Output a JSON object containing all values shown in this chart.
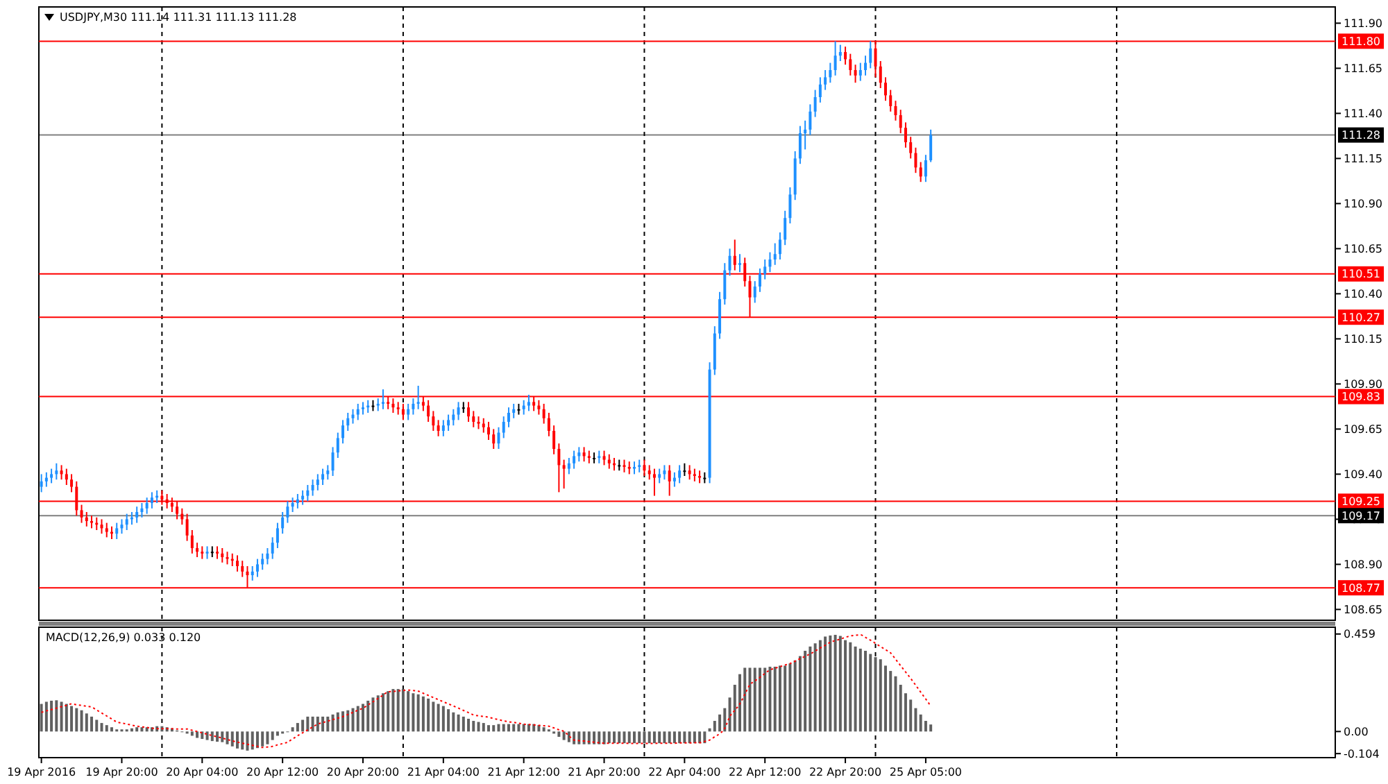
{
  "chart_data": [
    {
      "type": "candlestick",
      "title": "USDJPY,M30  111.14 111.31 111.13 111.28",
      "categories": [
        null,
        null,
        null,
        null,
        null,
        null,
        null,
        null,
        null,
        null,
        null,
        null,
        null,
        null,
        null,
        null,
        null,
        null,
        null,
        null,
        null,
        null,
        null,
        null,
        null,
        null,
        null,
        null,
        null,
        null,
        null,
        null,
        null,
        null,
        null,
        null,
        null,
        null,
        null,
        null,
        null,
        null,
        null,
        null,
        null,
        null,
        null,
        null,
        null,
        null,
        null,
        null,
        null,
        null,
        null,
        null,
        null,
        null,
        null,
        null,
        null,
        null,
        null,
        null,
        null,
        null,
        null,
        null,
        null,
        null,
        null,
        null,
        null,
        null,
        null,
        null,
        null,
        null,
        null,
        null,
        null,
        null,
        null,
        null,
        null,
        null,
        null,
        null,
        null,
        null,
        null,
        null,
        null,
        null,
        null,
        null,
        null,
        null,
        null,
        null,
        null,
        null,
        null,
        null,
        null,
        null,
        null,
        null,
        null,
        null,
        null,
        null,
        null,
        null,
        null,
        null,
        null,
        null,
        null,
        null,
        null,
        null,
        null,
        null,
        null,
        null,
        null,
        null,
        null,
        null,
        null,
        null,
        null,
        null,
        null,
        null,
        null,
        null,
        null,
        null,
        null,
        null,
        null,
        null,
        null,
        null,
        null,
        null,
        null,
        null,
        null,
        null,
        null,
        null,
        null,
        null,
        null,
        null,
        null,
        null,
        null,
        null,
        null,
        null,
        null,
        null,
        null,
        null,
        null,
        null,
        null,
        null,
        null,
        null,
        null,
        null,
        null,
        null,
        null,
        null,
        null,
        null,
        null,
        null,
        null,
        null,
        null,
        null,
        null,
        null,
        null,
        null,
        null,
        null,
        null,
        null,
        null,
        null,
        null,
        null,
        null,
        null,
        null,
        null,
        null,
        null,
        null,
        null,
        null,
        null,
        null,
        null,
        null,
        null,
        null,
        null,
        null,
        null,
        null,
        null,
        null,
        null,
        null,
        null,
        null,
        null,
        null,
        null,
        null,
        null,
        null,
        null,
        null,
        null,
        null,
        null,
        null,
        null,
        null,
        null,
        null,
        null,
        null,
        null,
        null,
        null,
        null,
        null,
        null,
        null,
        null,
        null,
        null,
        null,
        null,
        null,
        null,
        null
      ],
      "ohlc": [
        [
          109.33,
          109.4,
          109.3,
          109.36
        ],
        [
          109.36,
          109.41,
          109.33,
          109.38
        ],
        [
          109.38,
          109.43,
          109.35,
          109.4
        ],
        [
          109.4,
          109.46,
          109.37,
          109.42
        ],
        [
          109.42,
          109.45,
          109.37,
          109.4
        ],
        [
          109.4,
          109.43,
          109.34,
          109.37
        ],
        [
          109.37,
          109.4,
          109.3,
          109.33
        ],
        [
          109.33,
          109.36,
          109.17,
          109.2
        ],
        [
          109.2,
          109.23,
          109.13,
          109.16
        ],
        [
          109.16,
          109.19,
          109.11,
          109.14
        ],
        [
          109.14,
          109.17,
          109.1,
          109.13
        ],
        [
          109.13,
          109.16,
          109.09,
          109.12
        ],
        [
          109.12,
          109.15,
          109.07,
          109.1
        ],
        [
          109.1,
          109.13,
          109.05,
          109.08
        ],
        [
          109.08,
          109.11,
          109.04,
          109.07
        ],
        [
          109.07,
          109.13,
          109.04,
          109.1
        ],
        [
          109.1,
          109.15,
          109.07,
          109.12
        ],
        [
          109.12,
          109.18,
          109.09,
          109.15
        ],
        [
          109.15,
          109.19,
          109.12,
          109.16
        ],
        [
          109.16,
          109.22,
          109.13,
          109.19
        ],
        [
          109.19,
          109.24,
          109.16,
          109.21
        ],
        [
          109.21,
          109.27,
          109.18,
          109.24
        ],
        [
          109.24,
          109.3,
          109.21,
          109.27
        ],
        [
          109.27,
          109.31,
          109.24,
          109.28
        ],
        [
          109.28,
          109.31,
          109.23,
          109.26
        ],
        [
          109.26,
          109.29,
          109.21,
          109.24
        ],
        [
          109.24,
          109.27,
          109.19,
          109.22
        ],
        [
          109.22,
          109.25,
          109.15,
          109.18
        ],
        [
          109.18,
          109.21,
          109.12,
          109.15
        ],
        [
          109.15,
          109.18,
          109.03,
          109.06
        ],
        [
          109.06,
          109.09,
          108.96,
          108.99
        ],
        [
          108.99,
          109.02,
          108.94,
          108.97
        ],
        [
          108.97,
          109.0,
          108.93,
          108.96
        ],
        [
          108.96,
          109.0,
          108.93,
          108.97
        ],
        [
          108.97,
          109.0,
          108.94,
          108.97
        ],
        [
          108.97,
          109.0,
          108.93,
          108.96
        ],
        [
          108.96,
          108.99,
          108.91,
          108.94
        ],
        [
          108.94,
          108.97,
          108.9,
          108.93
        ],
        [
          108.93,
          108.96,
          108.89,
          108.92
        ],
        [
          108.92,
          108.95,
          108.86,
          108.89
        ],
        [
          108.89,
          108.92,
          108.83,
          108.86
        ],
        [
          108.86,
          108.89,
          108.77,
          108.84
        ],
        [
          108.84,
          108.89,
          108.81,
          108.86
        ],
        [
          108.86,
          108.93,
          108.83,
          108.9
        ],
        [
          108.9,
          108.96,
          108.87,
          108.93
        ],
        [
          108.93,
          108.99,
          108.9,
          108.96
        ],
        [
          108.96,
          109.05,
          108.93,
          109.02
        ],
        [
          109.02,
          109.13,
          108.99,
          109.1
        ],
        [
          109.1,
          109.19,
          109.07,
          109.16
        ],
        [
          109.16,
          109.25,
          109.13,
          109.22
        ],
        [
          109.22,
          109.27,
          109.19,
          109.24
        ],
        [
          109.24,
          109.29,
          109.21,
          109.26
        ],
        [
          109.26,
          109.31,
          109.23,
          109.28
        ],
        [
          109.28,
          109.34,
          109.25,
          109.31
        ],
        [
          109.31,
          109.37,
          109.28,
          109.34
        ],
        [
          109.34,
          109.4,
          109.31,
          109.37
        ],
        [
          109.37,
          109.43,
          109.34,
          109.4
        ],
        [
          109.4,
          109.45,
          109.37,
          109.42
        ],
        [
          109.42,
          109.55,
          109.39,
          109.52
        ],
        [
          109.52,
          109.63,
          109.49,
          109.6
        ],
        [
          109.6,
          109.7,
          109.57,
          109.67
        ],
        [
          109.67,
          109.74,
          109.64,
          109.71
        ],
        [
          109.71,
          109.76,
          109.68,
          109.73
        ],
        [
          109.73,
          109.79,
          109.7,
          109.76
        ],
        [
          109.76,
          109.8,
          109.73,
          109.77
        ],
        [
          109.77,
          109.81,
          109.74,
          109.78
        ],
        [
          109.78,
          109.81,
          109.75,
          109.78
        ],
        [
          109.78,
          109.82,
          109.75,
          109.79
        ],
        [
          109.79,
          109.87,
          109.76,
          109.8
        ],
        [
          109.8,
          109.83,
          109.76,
          109.79
        ],
        [
          109.79,
          109.82,
          109.74,
          109.77
        ],
        [
          109.77,
          109.8,
          109.73,
          109.76
        ],
        [
          109.76,
          109.79,
          109.7,
          109.73
        ],
        [
          109.73,
          109.79,
          109.7,
          109.76
        ],
        [
          109.76,
          109.82,
          109.73,
          109.79
        ],
        [
          109.79,
          109.89,
          109.76,
          109.8
        ],
        [
          109.8,
          109.83,
          109.75,
          109.78
        ],
        [
          109.78,
          109.81,
          109.69,
          109.72
        ],
        [
          109.72,
          109.75,
          109.64,
          109.67
        ],
        [
          109.67,
          109.7,
          109.61,
          109.64
        ],
        [
          109.64,
          109.7,
          109.61,
          109.67
        ],
        [
          109.67,
          109.73,
          109.64,
          109.7
        ],
        [
          109.7,
          109.76,
          109.67,
          109.73
        ],
        [
          109.73,
          109.8,
          109.7,
          109.77
        ],
        [
          109.77,
          109.8,
          109.74,
          109.77
        ],
        [
          109.77,
          109.8,
          109.69,
          109.72
        ],
        [
          109.72,
          109.75,
          109.66,
          109.69
        ],
        [
          109.69,
          109.72,
          109.65,
          109.68
        ],
        [
          109.68,
          109.71,
          109.63,
          109.66
        ],
        [
          109.66,
          109.69,
          109.59,
          109.62
        ],
        [
          109.62,
          109.65,
          109.54,
          109.57
        ],
        [
          109.57,
          109.66,
          109.54,
          109.63
        ],
        [
          109.63,
          109.72,
          109.6,
          109.69
        ],
        [
          109.69,
          109.77,
          109.66,
          109.74
        ],
        [
          109.74,
          109.79,
          109.71,
          109.76
        ],
        [
          109.76,
          109.79,
          109.73,
          109.76
        ],
        [
          109.76,
          109.81,
          109.73,
          109.78
        ],
        [
          109.78,
          109.84,
          109.75,
          109.8
        ],
        [
          109.8,
          109.83,
          109.75,
          109.78
        ],
        [
          109.78,
          109.81,
          109.73,
          109.76
        ],
        [
          109.76,
          109.79,
          109.68,
          109.71
        ],
        [
          109.71,
          109.74,
          109.61,
          109.64
        ],
        [
          109.64,
          109.67,
          109.51,
          109.54
        ],
        [
          109.54,
          109.57,
          109.3,
          109.45
        ],
        [
          109.45,
          109.48,
          109.32,
          109.43
        ],
        [
          109.43,
          109.49,
          109.4,
          109.46
        ],
        [
          109.46,
          109.53,
          109.43,
          109.5
        ],
        [
          109.5,
          109.55,
          109.47,
          109.52
        ],
        [
          109.52,
          109.55,
          109.47,
          109.5
        ],
        [
          109.5,
          109.53,
          109.46,
          109.49
        ],
        [
          109.49,
          109.52,
          109.46,
          109.49
        ],
        [
          109.49,
          109.53,
          109.46,
          109.5
        ],
        [
          109.5,
          109.53,
          109.45,
          109.48
        ],
        [
          109.48,
          109.51,
          109.43,
          109.46
        ],
        [
          109.46,
          109.49,
          109.42,
          109.45
        ],
        [
          109.45,
          109.48,
          109.42,
          109.45
        ],
        [
          109.45,
          109.48,
          109.41,
          109.44
        ],
        [
          109.44,
          109.47,
          109.4,
          109.43
        ],
        [
          109.43,
          109.47,
          109.4,
          109.44
        ],
        [
          109.44,
          109.48,
          109.41,
          109.45
        ],
        [
          109.45,
          109.48,
          109.39,
          109.42
        ],
        [
          109.42,
          109.45,
          109.37,
          109.4
        ],
        [
          109.4,
          109.43,
          109.28,
          109.38
        ],
        [
          109.38,
          109.43,
          109.35,
          109.4
        ],
        [
          109.4,
          109.45,
          109.37,
          109.42
        ],
        [
          109.42,
          109.45,
          109.28,
          109.36
        ],
        [
          109.36,
          109.41,
          109.33,
          109.38
        ],
        [
          109.38,
          109.45,
          109.35,
          109.42
        ],
        [
          109.42,
          109.46,
          109.39,
          109.42
        ],
        [
          109.42,
          109.45,
          109.37,
          109.4
        ],
        [
          109.4,
          109.43,
          109.36,
          109.39
        ],
        [
          109.39,
          109.42,
          109.35,
          109.38
        ],
        [
          109.38,
          109.41,
          109.35,
          109.38
        ],
        [
          109.38,
          110.02,
          109.35,
          109.98
        ],
        [
          109.98,
          110.22,
          109.95,
          110.18
        ],
        [
          110.18,
          110.41,
          110.15,
          110.37
        ],
        [
          110.37,
          110.57,
          110.34,
          110.53
        ],
        [
          110.53,
          110.65,
          110.5,
          110.61
        ],
        [
          110.61,
          110.7,
          110.53,
          110.56
        ],
        [
          110.56,
          110.62,
          110.52,
          110.57
        ],
        [
          110.57,
          110.6,
          110.44,
          110.47
        ],
        [
          110.47,
          110.5,
          110.27,
          110.38
        ],
        [
          110.38,
          110.47,
          110.35,
          110.44
        ],
        [
          110.44,
          110.54,
          110.41,
          110.51
        ],
        [
          110.51,
          110.59,
          110.48,
          110.55
        ],
        [
          110.55,
          110.63,
          110.52,
          110.59
        ],
        [
          110.59,
          110.68,
          110.56,
          110.62
        ],
        [
          110.62,
          110.74,
          110.59,
          110.7
        ],
        [
          110.7,
          110.86,
          110.67,
          110.82
        ],
        [
          110.82,
          110.99,
          110.79,
          110.95
        ],
        [
          110.95,
          111.19,
          110.92,
          111.15
        ],
        [
          111.15,
          111.33,
          111.12,
          111.29
        ],
        [
          111.29,
          111.36,
          111.2,
          111.31
        ],
        [
          111.31,
          111.45,
          111.28,
          111.41
        ],
        [
          111.41,
          111.53,
          111.38,
          111.49
        ],
        [
          111.49,
          111.6,
          111.46,
          111.56
        ],
        [
          111.56,
          111.64,
          111.53,
          111.6
        ],
        [
          111.6,
          111.68,
          111.57,
          111.64
        ],
        [
          111.64,
          111.8,
          111.61,
          111.72
        ],
        [
          111.72,
          111.78,
          111.69,
          111.74
        ],
        [
          111.74,
          111.77,
          111.67,
          111.7
        ],
        [
          111.7,
          111.73,
          111.61,
          111.64
        ],
        [
          111.64,
          111.67,
          111.57,
          111.61
        ],
        [
          111.61,
          111.68,
          111.58,
          111.64
        ],
        [
          111.64,
          111.72,
          111.61,
          111.68
        ],
        [
          111.68,
          111.8,
          111.65,
          111.76
        ],
        [
          111.76,
          111.8,
          111.6,
          111.66
        ],
        [
          111.66,
          111.69,
          111.54,
          111.57
        ],
        [
          111.57,
          111.6,
          111.47,
          111.5
        ],
        [
          111.5,
          111.53,
          111.41,
          111.44
        ],
        [
          111.44,
          111.47,
          111.36,
          111.39
        ],
        [
          111.39,
          111.42,
          111.29,
          111.32
        ],
        [
          111.32,
          111.35,
          111.21,
          111.24
        ],
        [
          111.24,
          111.27,
          111.15,
          111.18
        ],
        [
          111.18,
          111.21,
          111.07,
          111.1
        ],
        [
          111.1,
          111.13,
          111.02,
          111.05
        ],
        [
          111.05,
          111.17,
          111.02,
          111.14
        ],
        [
          111.14,
          111.31,
          111.13,
          111.28
        ],
        null,
        null,
        null,
        null,
        null,
        null,
        null,
        null,
        null,
        null,
        null,
        null,
        null,
        null,
        null,
        null,
        null,
        null,
        null,
        null,
        null,
        null,
        null,
        null,
        null,
        null,
        null,
        null,
        null,
        null,
        null,
        null,
        null,
        null,
        null,
        null,
        null,
        null,
        null,
        null,
        null,
        null,
        null,
        null,
        null,
        null,
        null,
        null,
        null,
        null,
        null,
        null,
        null,
        null,
        null,
        null,
        null,
        null,
        null,
        null,
        null,
        null,
        null,
        null,
        null,
        null,
        null,
        null,
        null,
        null,
        null,
        null,
        null,
        null,
        null,
        null,
        null,
        null,
        null,
        null
      ],
      "ylim": [
        108.59,
        111.99
      ],
      "yticks": [
        108.65,
        {
          "value": 108.9,
          "label": "108.90"
        },
        109.15,
        {
          "value": 109.4,
          "label": "109.40"
        },
        109.65,
        {
          "value": 109.9,
          "label": "109.90"
        },
        110.15,
        {
          "value": 110.4,
          "label": "110.40"
        },
        110.65,
        {
          "value": 110.9,
          "label": "110.90"
        },
        111.15,
        {
          "value": 111.4,
          "label": "111.40"
        },
        111.65,
        {
          "value": 111.9,
          "label": "111.90"
        }
      ],
      "ref_lines": [
        {
          "axis": "y",
          "value": 111.8,
          "label": "111.80",
          "color": "#ff0000"
        },
        {
          "axis": "y",
          "value": 111.28,
          "label": "111.28",
          "color": "#000000"
        },
        {
          "axis": "y",
          "value": 110.51,
          "label": "110.51",
          "color": "#ff0000"
        },
        {
          "axis": "y",
          "value": 110.27,
          "label": "110.27",
          "color": "#ff0000"
        },
        {
          "axis": "y",
          "value": 109.83,
          "label": "109.83",
          "color": "#ff0000"
        },
        {
          "axis": "y",
          "value": 109.25,
          "label": "109.25",
          "color": "#ff0000"
        },
        {
          "axis": "y",
          "value": 109.17,
          "label": "109.17",
          "color": "#000000"
        },
        {
          "axis": "y",
          "value": 108.77,
          "label": "108.77",
          "color": "#ff0000"
        }
      ]
    },
    {
      "type": "bar",
      "title": "MACD(12,26,9) 0.033 0.120",
      "categories": [
        "19 Apr 2016",
        null,
        null,
        null,
        null,
        null,
        null,
        null,
        null,
        null,
        null,
        null,
        null,
        null,
        null,
        null,
        "19 Apr 20:00",
        null,
        null,
        null,
        null,
        null,
        null,
        null,
        null,
        null,
        null,
        null,
        null,
        null,
        null,
        null,
        "20 Apr 04:00",
        null,
        null,
        null,
        null,
        null,
        null,
        null,
        null,
        null,
        null,
        null,
        null,
        null,
        null,
        null,
        "20 Apr 12:00",
        null,
        null,
        null,
        null,
        null,
        null,
        null,
        null,
        null,
        null,
        null,
        null,
        null,
        null,
        null,
        "20 Apr 20:00",
        null,
        null,
        null,
        null,
        null,
        null,
        null,
        null,
        null,
        null,
        null,
        null,
        null,
        null,
        null,
        "21 Apr 04:00",
        null,
        null,
        null,
        null,
        null,
        null,
        null,
        null,
        null,
        null,
        null,
        null,
        null,
        null,
        null,
        "21 Apr 12:00",
        null,
        null,
        null,
        null,
        null,
        null,
        null,
        null,
        null,
        null,
        null,
        null,
        null,
        null,
        null,
        "21 Apr 20:00",
        null,
        null,
        null,
        null,
        null,
        null,
        null,
        null,
        null,
        null,
        null,
        null,
        null,
        null,
        null,
        "22 Apr 04:00",
        null,
        null,
        null,
        null,
        null,
        null,
        null,
        null,
        null,
        null,
        null,
        null,
        null,
        null,
        null,
        "22 Apr 12:00",
        null,
        null,
        null,
        null,
        null,
        null,
        null,
        null,
        null,
        null,
        null,
        null,
        null,
        null,
        null,
        "22 Apr 20:00",
        null,
        null,
        null,
        null,
        null,
        null,
        null,
        null,
        null,
        null,
        null,
        null,
        null,
        null,
        null,
        "25 Apr 05:00",
        null,
        null,
        null,
        null,
        null,
        null,
        null,
        null,
        null,
        null,
        null,
        null,
        null,
        null,
        null,
        null,
        null,
        null,
        null,
        null,
        null,
        null,
        null,
        null,
        null,
        null,
        null,
        null,
        null,
        null,
        null,
        null,
        null,
        null,
        null,
        null,
        null,
        null,
        null,
        null,
        null,
        null,
        null,
        null,
        null,
        null,
        null,
        null,
        null,
        null,
        null,
        null,
        null,
        null,
        null,
        null,
        null,
        null,
        null,
        null,
        null,
        null,
        null,
        null,
        null,
        null,
        null,
        null,
        null,
        null,
        null,
        null,
        null,
        null,
        null,
        null,
        null,
        null,
        null,
        null,
        null
      ],
      "series": [
        {
          "color": "#606060",
          "values": [
            0.13,
            0.14,
            0.145,
            0.147,
            0.14,
            0.13,
            0.12,
            0.11,
            0.1,
            0.085,
            0.07,
            0.055,
            0.04,
            0.03,
            0.02,
            0.01,
            0.01,
            0.01,
            0.015,
            0.02,
            0.02,
            0.02,
            0.02,
            0.025,
            0.025,
            0.02,
            0.015,
            0.005,
            0,
            -0.01,
            -0.02,
            -0.03,
            -0.035,
            -0.04,
            -0.045,
            -0.048,
            -0.05,
            -0.06,
            -0.07,
            -0.08,
            -0.085,
            -0.09,
            -0.085,
            -0.078,
            -0.07,
            -0.06,
            -0.04,
            -0.02,
            -0.01,
            0,
            0.02,
            0.04,
            0.055,
            0.07,
            0.07,
            0.07,
            0.07,
            0.07,
            0.08,
            0.09,
            0.095,
            0.1,
            0.11,
            0.12,
            0.13,
            0.145,
            0.16,
            0.17,
            0.18,
            0.19,
            0.2,
            0.2,
            0.2,
            0.19,
            0.18,
            0.175,
            0.165,
            0.155,
            0.14,
            0.13,
            0.12,
            0.105,
            0.09,
            0.08,
            0.07,
            0.06,
            0.05,
            0.045,
            0.04,
            0.03,
            0.03,
            0.035,
            0.035,
            0.035,
            0.035,
            0.035,
            0.035,
            0.035,
            0.035,
            0.03,
            0.02,
            0.01,
            -0.01,
            -0.025,
            -0.04,
            -0.05,
            -0.06,
            -0.06,
            -0.06,
            -0.06,
            -0.06,
            -0.06,
            -0.06,
            -0.055,
            -0.055,
            -0.055,
            -0.055,
            -0.055,
            -0.055,
            -0.055,
            -0.055,
            -0.055,
            -0.055,
            -0.055,
            -0.055,
            -0.055,
            -0.055,
            -0.055,
            -0.055,
            -0.055,
            -0.055,
            -0.055,
            -0.055,
            0.015,
            0.05,
            0.08,
            0.11,
            0.16,
            0.22,
            0.27,
            0.3,
            0.3,
            0.3,
            0.3,
            0.3,
            0.305,
            0.305,
            0.31,
            0.31,
            0.32,
            0.335,
            0.355,
            0.38,
            0.4,
            0.415,
            0.43,
            0.447,
            0.452,
            0.455,
            0.45,
            0.43,
            0.42,
            0.4,
            0.39,
            0.38,
            0.365,
            0.35,
            0.34,
            0.31,
            0.285,
            0.26,
            0.22,
            0.18,
            0.15,
            0.11,
            0.08,
            0.05,
            0.033,
            null,
            null,
            null,
            null,
            null,
            null,
            null,
            null,
            null,
            null,
            null,
            null,
            null,
            null,
            null,
            null,
            null,
            null,
            null,
            null,
            null,
            null,
            null,
            null,
            null,
            null,
            null,
            null,
            null,
            null,
            null,
            null,
            null,
            null,
            null,
            null,
            null,
            null,
            null,
            null,
            null,
            null,
            null,
            null,
            null,
            null,
            null,
            null,
            null,
            null,
            null,
            null,
            null,
            null,
            null,
            null,
            null,
            null,
            null,
            null,
            null,
            null,
            null,
            null,
            null,
            null,
            null,
            null,
            null,
            null,
            null,
            null,
            null,
            null,
            null,
            null,
            null,
            null,
            null,
            null
          ]
        },
        {
          "type": "line",
          "color": "#ff0000",
          "line_style": "dotted",
          "values": [
            0.09,
            0.097,
            0.103,
            0.11,
            0.117,
            0.123,
            0.13,
            0.126,
            0.123,
            0.119,
            0.115,
            0.101,
            0.087,
            0.073,
            0.059,
            0.045,
            0.04,
            0.035,
            0.03,
            0.025,
            0.022,
            0.019,
            0.016,
            0.013,
            0.013,
            0.013,
            0.013,
            0.012,
            0.012,
            0.012,
            0.006,
            0,
            -0.006,
            -0.013,
            -0.019,
            -0.025,
            -0.031,
            -0.038,
            -0.044,
            -0.05,
            -0.055,
            -0.06,
            -0.065,
            -0.07,
            -0.075,
            -0.073,
            -0.07,
            -0.063,
            -0.057,
            -0.05,
            -0.035,
            -0.02,
            -0.006,
            0.008,
            0.021,
            0.035,
            0.042,
            0.049,
            0.056,
            0.063,
            0.07,
            0.08,
            0.09,
            0.1,
            0.11,
            0.125,
            0.14,
            0.156,
            0.171,
            0.187,
            0.189,
            0.191,
            0.193,
            0.195,
            0.193,
            0.19,
            0.18,
            0.17,
            0.16,
            0.15,
            0.14,
            0.13,
            0.12,
            0.11,
            0.099,
            0.089,
            0.078,
            0.074,
            0.071,
            0.067,
            0.061,
            0.056,
            0.05,
            0.046,
            0.043,
            0.039,
            0.035,
            0.033,
            0.031,
            0.029,
            0.027,
            0.025,
            0.017,
            0.008,
            0,
            -0.02,
            -0.04,
            -0.043,
            -0.045,
            -0.048,
            -0.05,
            -0.053,
            -0.055,
            -0.055,
            -0.055,
            -0.055,
            -0.055,
            -0.056,
            -0.056,
            -0.056,
            -0.056,
            -0.056,
            -0.056,
            -0.055,
            -0.055,
            -0.055,
            -0.055,
            -0.054,
            -0.054,
            -0.054,
            -0.053,
            -0.053,
            -0.047,
            -0.04,
            -0.025,
            -0.01,
            0.015,
            0.07,
            0.1,
            0.13,
            0.175,
            0.22,
            0.238,
            0.255,
            0.273,
            0.29,
            0.298,
            0.305,
            0.313,
            0.32,
            0.331,
            0.343,
            0.354,
            0.365,
            0.379,
            0.393,
            0.406,
            0.42,
            0.428,
            0.435,
            0.443,
            0.45,
            0.453,
            0.455,
            0.443,
            0.43,
            0.415,
            0.4,
            0.385,
            0.37,
            0.34,
            0.31,
            0.28,
            0.25,
            0.218,
            0.185,
            0.153,
            0.12,
            null,
            null,
            null,
            null,
            null,
            null,
            null,
            null,
            null,
            null,
            null,
            null,
            null,
            null,
            null,
            null,
            null,
            null,
            null,
            null,
            null,
            null,
            null,
            null,
            null,
            null,
            null,
            null,
            null,
            null,
            null,
            null,
            null,
            null,
            null,
            null,
            null,
            null,
            null,
            null,
            null,
            null,
            null,
            null,
            null,
            null,
            null,
            null,
            null,
            null,
            null,
            null,
            null,
            null,
            null,
            null,
            null,
            null,
            null,
            null,
            null,
            null,
            null,
            null,
            null,
            null,
            null,
            null,
            null,
            null,
            null,
            null,
            null,
            null,
            null,
            null,
            null,
            null,
            null,
            null
          ]
        }
      ],
      "ylim": [
        -0.123,
        0.491
      ],
      "yticks": [
        -0.104,
        {
          "value": 0,
          "label": "0.00"
        },
        0.459
      ]
    }
  ]
}
